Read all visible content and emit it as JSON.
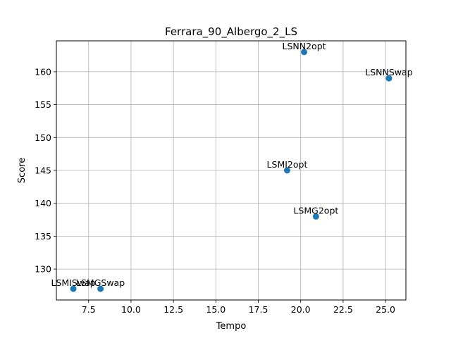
{
  "chart_data": {
    "type": "scatter",
    "title": "Ferrara_90_Albergo_2_LS",
    "xlabel": "Tempo",
    "ylabel": "Score",
    "xlim": [
      5.6,
      26.2
    ],
    "ylim": [
      125.3,
      164.7
    ],
    "xticks": [
      7.5,
      10.0,
      12.5,
      15.0,
      17.5,
      20.0,
      22.5,
      25.0
    ],
    "yticks": [
      130,
      135,
      140,
      145,
      150,
      155,
      160
    ],
    "grid": true,
    "color": "#1f77b4",
    "points": [
      {
        "label": "LSMISwap",
        "x": 6.6,
        "y": 127
      },
      {
        "label": "LSMGSwap",
        "x": 8.2,
        "y": 127
      },
      {
        "label": "LSMI2opt",
        "x": 19.2,
        "y": 145
      },
      {
        "label": "LSMG2opt",
        "x": 20.9,
        "y": 138
      },
      {
        "label": "LSNN2opt",
        "x": 20.2,
        "y": 163
      },
      {
        "label": "LSNNSwap",
        "x": 25.2,
        "y": 159
      }
    ]
  }
}
